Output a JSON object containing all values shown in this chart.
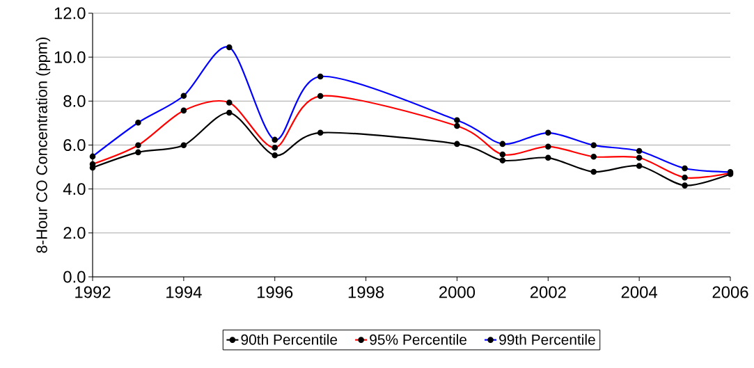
{
  "chart_data": {
    "type": "line",
    "ylabel": "8-Hour CO Concentration (ppm)",
    "x": [
      1992,
      1993,
      1994,
      1995,
      1996,
      1997,
      2000,
      2001,
      2002,
      2003,
      2004,
      2005,
      2006
    ],
    "series": [
      {
        "name": "90th Percentile",
        "color": "#000000",
        "values": [
          4.97,
          5.67,
          5.99,
          7.47,
          5.53,
          6.56,
          6.05,
          5.3,
          5.42,
          4.78,
          5.05,
          4.16,
          4.68
        ]
      },
      {
        "name": "95% Percentile",
        "color": "#ff0000",
        "values": [
          5.13,
          5.99,
          7.57,
          7.93,
          5.88,
          8.23,
          6.87,
          5.57,
          5.93,
          5.47,
          5.42,
          4.52,
          4.72
        ]
      },
      {
        "name": "99th Percentile",
        "color": "#0000ff",
        "values": [
          5.48,
          7.02,
          8.24,
          10.45,
          6.24,
          9.12,
          7.13,
          6.05,
          6.56,
          5.99,
          5.73,
          4.94,
          4.77
        ]
      }
    ],
    "xlim": [
      1992,
      2006
    ],
    "xticks": [
      1992,
      1994,
      1996,
      1998,
      2000,
      2002,
      2004,
      2006
    ],
    "ylim": [
      0,
      12
    ],
    "yticks": [
      {
        "value": 0,
        "label": "0.0"
      },
      {
        "value": 2,
        "label": "2.0"
      },
      {
        "value": 4,
        "label": "4.0"
      },
      {
        "value": 6,
        "label": "6.0"
      },
      {
        "value": 8,
        "label": "8.0"
      },
      {
        "value": 10,
        "label": "10.0"
      },
      {
        "value": 12,
        "label": "12.0"
      }
    ],
    "grid": "y",
    "legend": "bottom",
    "marker": "circle",
    "line_style": "solid"
  }
}
